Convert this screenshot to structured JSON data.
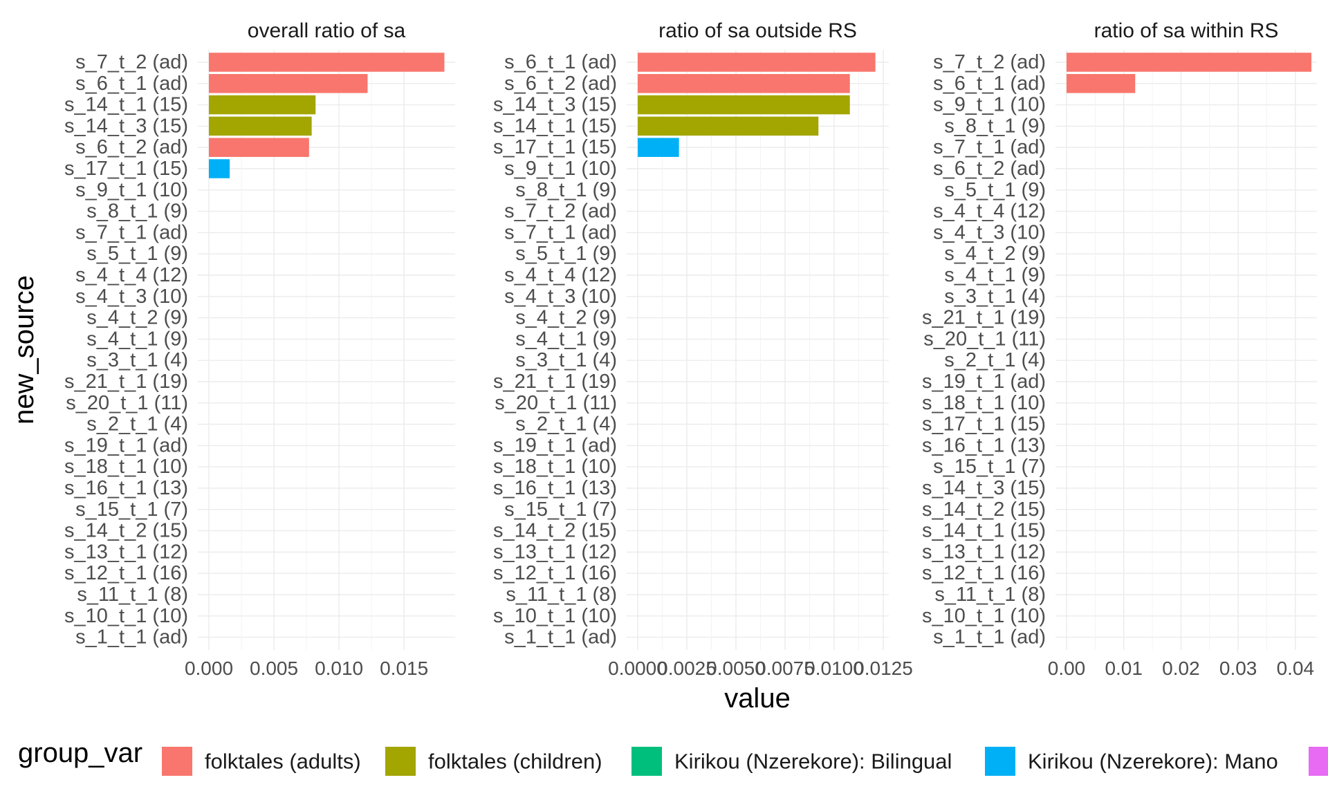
{
  "chart_data": {
    "type": "bar",
    "orientation": "horizontal",
    "faceted": true,
    "grid": true,
    "xlabel": "value",
    "ylabel": "new_source",
    "legend": {
      "title": "group_var",
      "position": "bottom",
      "entries": [
        {
          "name": "folktales (adults)",
          "color": "#F8766D"
        },
        {
          "name": "folktales (children)",
          "color": "#A3A500"
        },
        {
          "name": "Kirikou (Nzerekore): Bilingual",
          "color": "#00BF7D"
        },
        {
          "name": "Kirikou (Nzerekore): Mano",
          "color": "#00B0F6"
        },
        {
          "name": "",
          "color": "#E76BF3"
        }
      ]
    },
    "panels": [
      {
        "title": "overall ratio of sa",
        "xlim": [
          0,
          0.0185
        ],
        "xticks": [
          0,
          0.005,
          0.01,
          0.015
        ],
        "xtick_labels": [
          "0.000",
          "0.005",
          "0.010",
          "0.015"
        ],
        "categories": [
          "s_7_t_2 (ad)",
          "s_6_t_1 (ad)",
          "s_14_t_1 (15)",
          "s_14_t_3 (15)",
          "s_6_t_2 (ad)",
          "s_17_t_1 (15)",
          "s_9_t_1 (10)",
          "s_8_t_1 (9)",
          "s_7_t_1 (ad)",
          "s_5_t_1 (9)",
          "s_4_t_4 (12)",
          "s_4_t_3 (10)",
          "s_4_t_2 (9)",
          "s_4_t_1 (9)",
          "s_3_t_1 (4)",
          "s_21_t_1 (19)",
          "s_20_t_1 (11)",
          "s_2_t_1 (4)",
          "s_19_t_1 (ad)",
          "s_18_t_1 (10)",
          "s_16_t_1 (13)",
          "s_15_t_1 (7)",
          "s_14_t_2 (15)",
          "s_13_t_1 (12)",
          "s_12_t_1 (16)",
          "s_11_t_1 (8)",
          "s_10_t_1 (10)",
          "s_1_t_1 (ad)"
        ],
        "values": [
          0.0181,
          0.0122,
          0.0082,
          0.0079,
          0.0077,
          0.0016,
          0,
          0,
          0,
          0,
          0,
          0,
          0,
          0,
          0,
          0,
          0,
          0,
          0,
          0,
          0,
          0,
          0,
          0,
          0,
          0,
          0,
          0
        ],
        "groups": [
          0,
          0,
          1,
          1,
          0,
          3,
          0,
          0,
          0,
          0,
          0,
          0,
          0,
          0,
          0,
          0,
          0,
          0,
          0,
          0,
          0,
          0,
          0,
          0,
          0,
          0,
          0,
          0
        ]
      },
      {
        "title": "ratio of sa outside RS",
        "xlim": [
          0,
          0.0125
        ],
        "xticks": [
          0,
          0.0025,
          0.005,
          0.0075,
          0.01,
          0.0125
        ],
        "xtick_labels": [
          "0.0000",
          "0.0025",
          "0.0050",
          "0.0075",
          "0.0100",
          "0.0125"
        ],
        "categories": [
          "s_6_t_1 (ad)",
          "s_6_t_2 (ad)",
          "s_14_t_3 (15)",
          "s_14_t_1 (15)",
          "s_17_t_1 (15)",
          "s_9_t_1 (10)",
          "s_8_t_1 (9)",
          "s_7_t_2 (ad)",
          "s_7_t_1 (ad)",
          "s_5_t_1 (9)",
          "s_4_t_4 (12)",
          "s_4_t_3 (10)",
          "s_4_t_2 (9)",
          "s_4_t_1 (9)",
          "s_3_t_1 (4)",
          "s_21_t_1 (19)",
          "s_20_t_1 (11)",
          "s_2_t_1 (4)",
          "s_19_t_1 (ad)",
          "s_18_t_1 (10)",
          "s_16_t_1 (13)",
          "s_15_t_1 (7)",
          "s_14_t_2 (15)",
          "s_13_t_1 (12)",
          "s_12_t_1 (16)",
          "s_11_t_1 (8)",
          "s_10_t_1 (10)",
          "s_1_t_1 (ad)"
        ],
        "values": [
          0.0121,
          0.0108,
          0.0108,
          0.0092,
          0.0021,
          0,
          0,
          0,
          0,
          0,
          0,
          0,
          0,
          0,
          0,
          0,
          0,
          0,
          0,
          0,
          0,
          0,
          0,
          0,
          0,
          0,
          0,
          0
        ],
        "groups": [
          0,
          0,
          1,
          1,
          3,
          0,
          0,
          0,
          0,
          0,
          0,
          0,
          0,
          0,
          0,
          0,
          0,
          0,
          0,
          0,
          0,
          0,
          0,
          0,
          0,
          0,
          0,
          0
        ]
      },
      {
        "title": "ratio of sa within RS",
        "xlim": [
          0,
          0.0428
        ],
        "xticks": [
          0,
          0.01,
          0.02,
          0.03,
          0.04
        ],
        "xtick_labels": [
          "0.00",
          "0.01",
          "0.02",
          "0.03",
          "0.04"
        ],
        "categories": [
          "s_7_t_2 (ad)",
          "s_6_t_1 (ad)",
          "s_9_t_1 (10)",
          "s_8_t_1 (9)",
          "s_7_t_1 (ad)",
          "s_6_t_2 (ad)",
          "s_5_t_1 (9)",
          "s_4_t_4 (12)",
          "s_4_t_3 (10)",
          "s_4_t_2 (9)",
          "s_4_t_1 (9)",
          "s_3_t_1 (4)",
          "s_21_t_1 (19)",
          "s_20_t_1 (11)",
          "s_2_t_1 (4)",
          "s_19_t_1 (ad)",
          "s_18_t_1 (10)",
          "s_17_t_1 (15)",
          "s_16_t_1 (13)",
          "s_15_t_1 (7)",
          "s_14_t_3 (15)",
          "s_14_t_2 (15)",
          "s_14_t_1 (15)",
          "s_13_t_1 (12)",
          "s_12_t_1 (16)",
          "s_11_t_1 (8)",
          "s_10_t_1 (10)",
          "s_1_t_1 (ad)"
        ],
        "values": [
          0.0428,
          0.012,
          0,
          0,
          0,
          0,
          0,
          0,
          0,
          0,
          0,
          0,
          0,
          0,
          0,
          0,
          0,
          0,
          0,
          0,
          0,
          0,
          0,
          0,
          0,
          0,
          0,
          0
        ],
        "groups": [
          0,
          0,
          0,
          0,
          0,
          0,
          0,
          0,
          0,
          0,
          0,
          0,
          0,
          0,
          0,
          0,
          0,
          0,
          0,
          0,
          0,
          0,
          0,
          0,
          0,
          0,
          0,
          0
        ]
      }
    ]
  }
}
